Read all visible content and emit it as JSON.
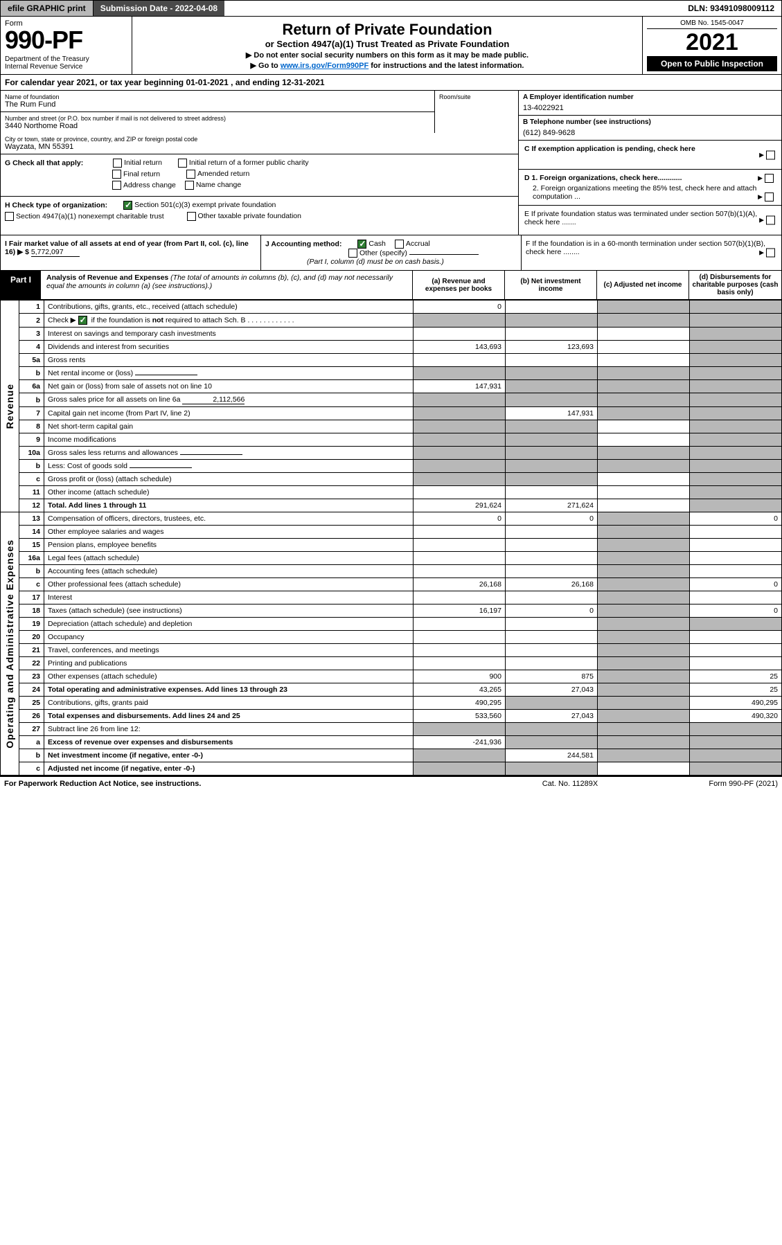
{
  "topbar": {
    "efile": "efile GRAPHIC print",
    "subdate_label": "Submission Date - 2022-04-08",
    "dln": "DLN: 93491098009112"
  },
  "header": {
    "form_word": "Form",
    "form_num": "990-PF",
    "dept": "Department of the Treasury\nInternal Revenue Service",
    "title": "Return of Private Foundation",
    "subtitle": "or Section 4947(a)(1) Trust Treated as Private Foundation",
    "note1": "▶ Do not enter social security numbers on this form as it may be made public.",
    "note2_pre": "▶ Go to ",
    "note2_link": "www.irs.gov/Form990PF",
    "note2_post": " for instructions and the latest information.",
    "omb": "OMB No. 1545-0047",
    "year": "2021",
    "open": "Open to Public Inspection"
  },
  "calendar": "For calendar year 2021, or tax year beginning 01-01-2021                , and ending 12-31-2021",
  "info": {
    "name_lbl": "Name of foundation",
    "name_val": "The Rum Fund",
    "addr_lbl": "Number and street (or P.O. box number if mail is not delivered to street address)",
    "addr_val": "3440 Northome Road",
    "room_lbl": "Room/suite",
    "city_lbl": "City or town, state or province, country, and ZIP or foreign postal code",
    "city_val": "Wayzata, MN  55391",
    "ein_lbl": "A Employer identification number",
    "ein_val": "13-4022921",
    "tel_lbl": "B Telephone number (see instructions)",
    "tel_val": "(612) 849-9628",
    "c_lbl": "C If exemption application is pending, check here"
  },
  "g": {
    "label": "G Check all that apply:",
    "opts": [
      "Initial return",
      "Initial return of a former public charity",
      "Final return",
      "Amended return",
      "Address change",
      "Name change"
    ]
  },
  "h": {
    "label": "H Check type of organization:",
    "opt1": "Section 501(c)(3) exempt private foundation",
    "opt2": "Section 4947(a)(1) nonexempt charitable trust",
    "opt3": "Other taxable private foundation"
  },
  "i": {
    "label": "I Fair market value of all assets at end of year (from Part II, col. (c), line 16) ▶ $",
    "val": "5,772,097"
  },
  "j": {
    "label": "J Accounting method:",
    "cash": "Cash",
    "accrual": "Accrual",
    "other": "Other (specify)",
    "note": "(Part I, column (d) must be on cash basis.)"
  },
  "d": {
    "d1": "D 1. Foreign organizations, check here............",
    "d2": "2. Foreign organizations meeting the 85% test, check here and attach computation ..."
  },
  "e": "E  If private foundation status was terminated under section 507(b)(1)(A), check here .......",
  "f": "F  If the foundation is in a 60-month termination under section 507(b)(1)(B), check here ........",
  "part1": {
    "tab": "Part I",
    "title_bold": "Analysis of Revenue and Expenses",
    "title_rest": " (The total of amounts in columns (b), (c), and (d) may not necessarily equal the amounts in column (a) (see instructions).)",
    "col_a": "(a)  Revenue and expenses per books",
    "col_b": "(b)  Net investment income",
    "col_c": "(c)  Adjusted net income",
    "col_d": "(d)  Disbursements for charitable purposes (cash basis only)"
  },
  "vlabels": {
    "rev": "Revenue",
    "exp": "Operating and Administrative Expenses"
  },
  "rows": [
    {
      "n": "1",
      "d": "Contributions, gifts, grants, etc., received (attach schedule)",
      "a": "0",
      "b": "",
      "c": "s",
      "de": "s"
    },
    {
      "n": "2",
      "d": "Check ▶ ☑ if the foundation is not required to attach Sch. B",
      "a": "s",
      "b": "s",
      "c": "s",
      "de": "s",
      "chk": true
    },
    {
      "n": "3",
      "d": "Interest on savings and temporary cash investments",
      "a": "",
      "b": "",
      "c": "",
      "de": "s"
    },
    {
      "n": "4",
      "d": "Dividends and interest from securities",
      "a": "143,693",
      "b": "123,693",
      "c": "",
      "de": "s"
    },
    {
      "n": "5a",
      "d": "Gross rents",
      "a": "",
      "b": "",
      "c": "",
      "de": "s"
    },
    {
      "n": "b",
      "d": "Net rental income or (loss)",
      "a": "s",
      "b": "s",
      "c": "s",
      "de": "s",
      "inline": true
    },
    {
      "n": "6a",
      "d": "Net gain or (loss) from sale of assets not on line 10",
      "a": "147,931",
      "b": "s",
      "c": "s",
      "de": "s"
    },
    {
      "n": "b",
      "d": "Gross sales price for all assets on line 6a",
      "a": "s",
      "b": "s",
      "c": "s",
      "de": "s",
      "inline": true,
      "ival": "2,112,566"
    },
    {
      "n": "7",
      "d": "Capital gain net income (from Part IV, line 2)",
      "a": "s",
      "b": "147,931",
      "c": "s",
      "de": "s"
    },
    {
      "n": "8",
      "d": "Net short-term capital gain",
      "a": "s",
      "b": "s",
      "c": "",
      "de": "s"
    },
    {
      "n": "9",
      "d": "Income modifications",
      "a": "s",
      "b": "s",
      "c": "",
      "de": "s"
    },
    {
      "n": "10a",
      "d": "Gross sales less returns and allowances",
      "a": "s",
      "b": "s",
      "c": "s",
      "de": "s",
      "inline": true
    },
    {
      "n": "b",
      "d": "Less: Cost of goods sold",
      "a": "s",
      "b": "s",
      "c": "s",
      "de": "s",
      "inline": true
    },
    {
      "n": "c",
      "d": "Gross profit or (loss) (attach schedule)",
      "a": "s",
      "b": "s",
      "c": "",
      "de": "s"
    },
    {
      "n": "11",
      "d": "Other income (attach schedule)",
      "a": "",
      "b": "",
      "c": "",
      "de": "s"
    },
    {
      "n": "12",
      "d": "Total. Add lines 1 through 11",
      "a": "291,624",
      "b": "271,624",
      "c": "",
      "de": "s",
      "bold": true
    },
    {
      "n": "13",
      "d": "Compensation of officers, directors, trustees, etc.",
      "a": "0",
      "b": "0",
      "c": "s",
      "de": "0"
    },
    {
      "n": "14",
      "d": "Other employee salaries and wages",
      "a": "",
      "b": "",
      "c": "s",
      "de": ""
    },
    {
      "n": "15",
      "d": "Pension plans, employee benefits",
      "a": "",
      "b": "",
      "c": "s",
      "de": ""
    },
    {
      "n": "16a",
      "d": "Legal fees (attach schedule)",
      "a": "",
      "b": "",
      "c": "s",
      "de": ""
    },
    {
      "n": "b",
      "d": "Accounting fees (attach schedule)",
      "a": "",
      "b": "",
      "c": "s",
      "de": ""
    },
    {
      "n": "c",
      "d": "Other professional fees (attach schedule)",
      "a": "26,168",
      "b": "26,168",
      "c": "s",
      "de": "0"
    },
    {
      "n": "17",
      "d": "Interest",
      "a": "",
      "b": "",
      "c": "s",
      "de": ""
    },
    {
      "n": "18",
      "d": "Taxes (attach schedule) (see instructions)",
      "a": "16,197",
      "b": "0",
      "c": "s",
      "de": "0"
    },
    {
      "n": "19",
      "d": "Depreciation (attach schedule) and depletion",
      "a": "",
      "b": "",
      "c": "s",
      "de": "s"
    },
    {
      "n": "20",
      "d": "Occupancy",
      "a": "",
      "b": "",
      "c": "s",
      "de": ""
    },
    {
      "n": "21",
      "d": "Travel, conferences, and meetings",
      "a": "",
      "b": "",
      "c": "s",
      "de": ""
    },
    {
      "n": "22",
      "d": "Printing and publications",
      "a": "",
      "b": "",
      "c": "s",
      "de": ""
    },
    {
      "n": "23",
      "d": "Other expenses (attach schedule)",
      "a": "900",
      "b": "875",
      "c": "s",
      "de": "25"
    },
    {
      "n": "24",
      "d": "Total operating and administrative expenses. Add lines 13 through 23",
      "a": "43,265",
      "b": "27,043",
      "c": "s",
      "de": "25",
      "bold": true
    },
    {
      "n": "25",
      "d": "Contributions, gifts, grants paid",
      "a": "490,295",
      "b": "s",
      "c": "s",
      "de": "490,295"
    },
    {
      "n": "26",
      "d": "Total expenses and disbursements. Add lines 24 and 25",
      "a": "533,560",
      "b": "27,043",
      "c": "s",
      "de": "490,320",
      "bold": true
    },
    {
      "n": "27",
      "d": "Subtract line 26 from line 12:",
      "a": "s",
      "b": "s",
      "c": "s",
      "de": "s"
    },
    {
      "n": "a",
      "d": "Excess of revenue over expenses and disbursements",
      "a": "-241,936",
      "b": "s",
      "c": "s",
      "de": "s",
      "bold": true
    },
    {
      "n": "b",
      "d": "Net investment income (if negative, enter -0-)",
      "a": "s",
      "b": "244,581",
      "c": "s",
      "de": "s",
      "bold": true
    },
    {
      "n": "c",
      "d": "Adjusted net income (if negative, enter -0-)",
      "a": "s",
      "b": "s",
      "c": "",
      "de": "s",
      "bold": true
    }
  ],
  "footer": {
    "left": "For Paperwork Reduction Act Notice, see instructions.",
    "mid": "Cat. No. 11289X",
    "right": "Form 990-PF (2021)"
  }
}
